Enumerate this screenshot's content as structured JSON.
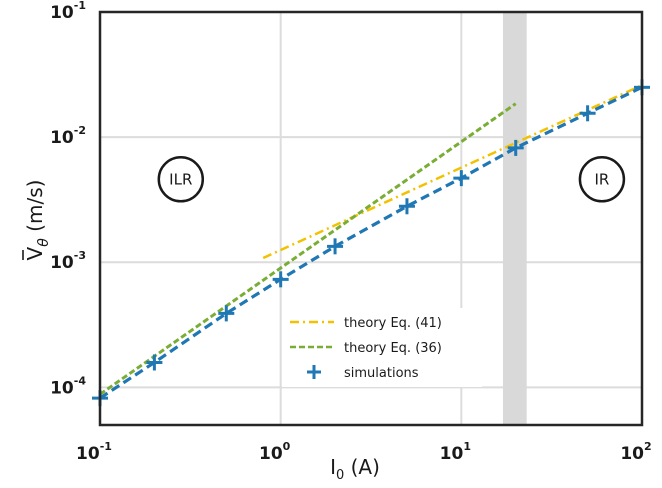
{
  "chart_data": {
    "type": "line",
    "x_scale": "log",
    "y_scale": "log",
    "xlim": [
      0.1,
      100
    ],
    "ylim": [
      5e-05,
      0.1
    ],
    "xlabel_main": "I",
    "xlabel_sub": "0",
    "xlabel_unit": " (A)",
    "ylabel_main": "V",
    "ylabel_sub": "θ",
    "ylabel_unit": " (m/s)",
    "x_ticks": [
      {
        "value": 0.1,
        "base": "10",
        "exp": "-1"
      },
      {
        "value": 1,
        "base": "10",
        "exp": "0"
      },
      {
        "value": 10,
        "base": "10",
        "exp": "1"
      },
      {
        "value": 100,
        "base": "10",
        "exp": "2"
      }
    ],
    "y_ticks": [
      {
        "value": 0.0001,
        "base": "10",
        "exp": "-4"
      },
      {
        "value": 0.001,
        "base": "10",
        "exp": "-3"
      },
      {
        "value": 0.01,
        "base": "10",
        "exp": "-2"
      },
      {
        "value": 0.1,
        "base": "10",
        "exp": "-1"
      }
    ],
    "grid": true,
    "legend_position": "bottom-center",
    "shaded_band": {
      "x_start": 17,
      "x_end": 23,
      "color": "#d9d9d9"
    },
    "regions": [
      {
        "label": "ILR",
        "x": 0.28,
        "y": 0.0046
      },
      {
        "label": "IR",
        "x": 60,
        "y": 0.0046
      }
    ],
    "series": [
      {
        "name": "theory Eq. (41)",
        "style": "dashdot",
        "color": "#f2c200",
        "x": [
          0.8,
          100
        ],
        "y": [
          0.00108,
          0.026
        ]
      },
      {
        "name": "theory Eq. (36)",
        "style": "dashed",
        "color": "#7aad35",
        "x": [
          0.1,
          20
        ],
        "y": [
          8.8e-05,
          0.0185
        ]
      },
      {
        "name": "simulations",
        "style": "plus-dashed",
        "color": "#1f77b4",
        "x": [
          0.1,
          0.2,
          0.5,
          1,
          2,
          5,
          10,
          20,
          50,
          100
        ],
        "y": [
          8.2e-05,
          0.000158,
          0.00039,
          0.00073,
          0.00134,
          0.0028,
          0.0047,
          0.0082,
          0.0155,
          0.025
        ]
      }
    ]
  }
}
